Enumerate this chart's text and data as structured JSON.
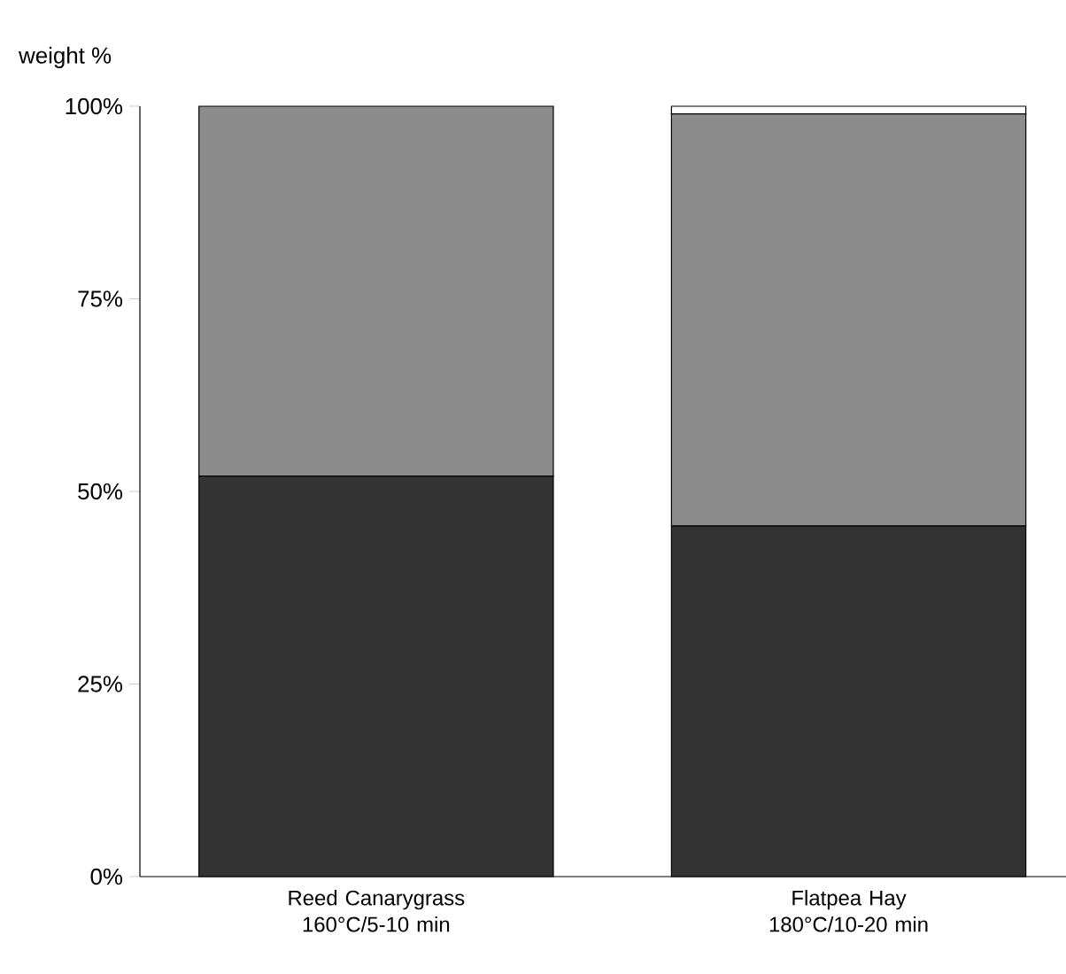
{
  "chart_data": {
    "type": "bar",
    "stacked": true,
    "ylabel": "weight %",
    "categories": [
      "Reed Canarygrass 160°C/5-10 min",
      "Flatpea Hay 180°C/10-20 min"
    ],
    "series": [
      {
        "color": "#333333",
        "values": [
          52,
          45.5
        ]
      },
      {
        "color": "#8c8c8c",
        "values": [
          48,
          53.5
        ]
      },
      {
        "color": "#ffffff",
        "values": [
          0,
          1
        ]
      }
    ],
    "ylim": [
      0,
      100
    ],
    "yticks": [
      {
        "value": 0,
        "label": "0%"
      },
      {
        "value": 25,
        "label": "25%"
      },
      {
        "value": 50,
        "label": "50%"
      },
      {
        "value": 75,
        "label": "75%"
      },
      {
        "value": 100,
        "label": "100%"
      }
    ],
    "tick_labels": "xy"
  }
}
